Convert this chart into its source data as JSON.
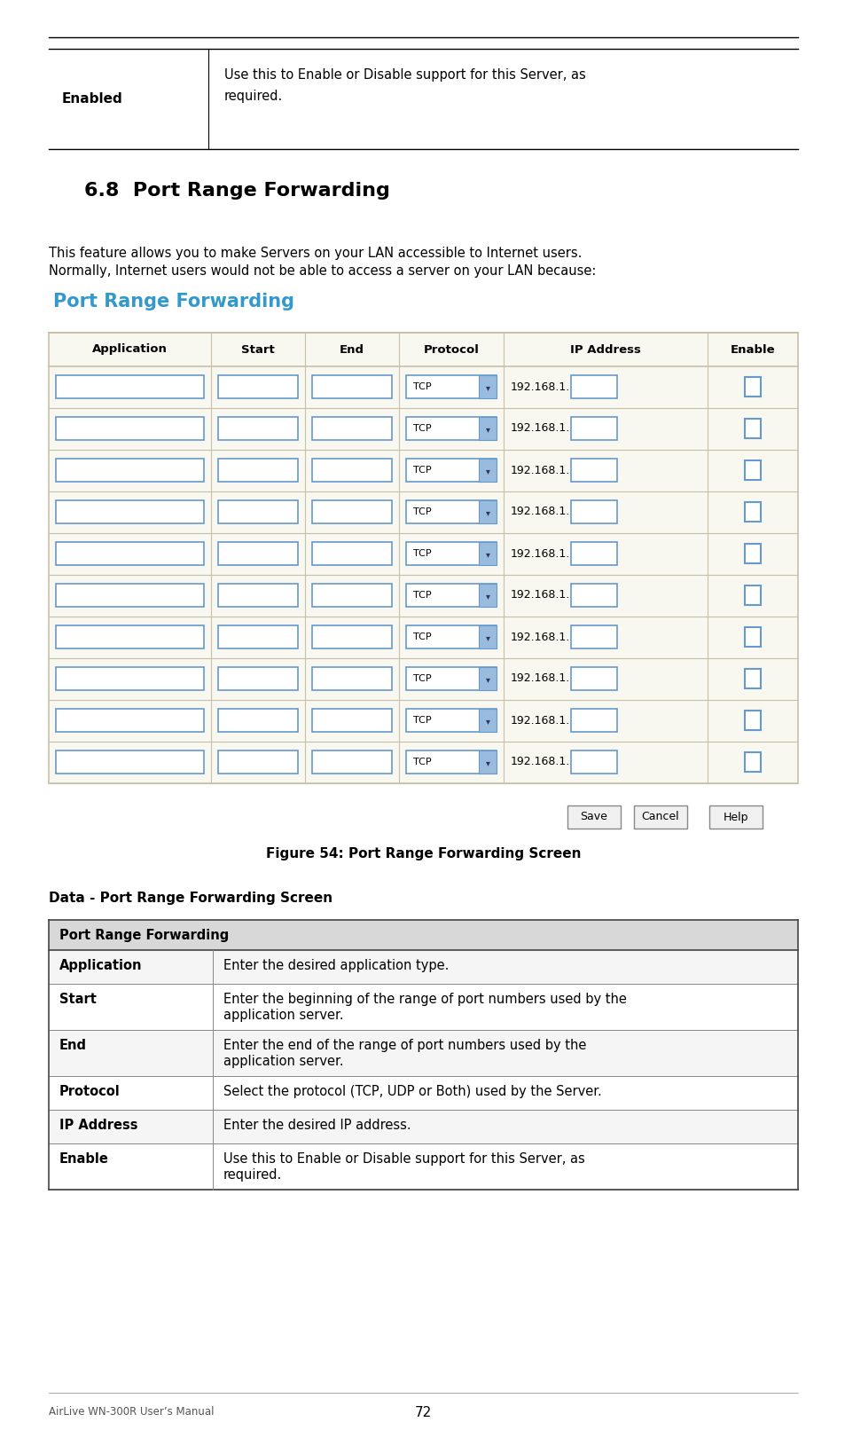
{
  "bg_color": "#ffffff",
  "top_table": {
    "col1": "Enabled",
    "col2_line1": "Use this to Enable or Disable support for this Server, as",
    "col2_line2": "required."
  },
  "section_title": "6.8  Port Range Forwarding",
  "body_line1": "This feature allows you to make Servers on your LAN accessible to Internet users.",
  "body_line2": "Normally, Internet users would not be able to access a server on your LAN because:",
  "blue_title": "Port Range Forwarding",
  "blue_color": "#3399cc",
  "form_headers": [
    "Application",
    "Start",
    "End",
    "Protocol",
    "IP Address",
    "Enable"
  ],
  "num_rows": 10,
  "figure_caption": "Figure 54: Port Range Forwarding Screen",
  "data_section_title": "Data - Port Range Forwarding Screen",
  "data_table_header": "Port Range Forwarding",
  "data_table_header_bg": "#d8d8d8",
  "data_rows": [
    [
      "Application",
      "Enter the desired application type.",
      false
    ],
    [
      "Start",
      "Enter the beginning of the range of port numbers used by the",
      true,
      "application server."
    ],
    [
      "End",
      "Enter the end of the range of port numbers used by the",
      true,
      "application server."
    ],
    [
      "Protocol",
      "Select the protocol (TCP, UDP or Both) used by the Server.",
      false
    ],
    [
      "IP Address",
      "Enter the desired IP address.",
      false
    ],
    [
      "Enable",
      "Use this to Enable or Disable support for this Server, as",
      true,
      "required."
    ]
  ],
  "footer_left": "AirLive WN-300R User’s Manual",
  "footer_page": "72",
  "input_border": "#6699cc",
  "table_border": "#c8c0a8",
  "form_bg": "#f8f8f0"
}
